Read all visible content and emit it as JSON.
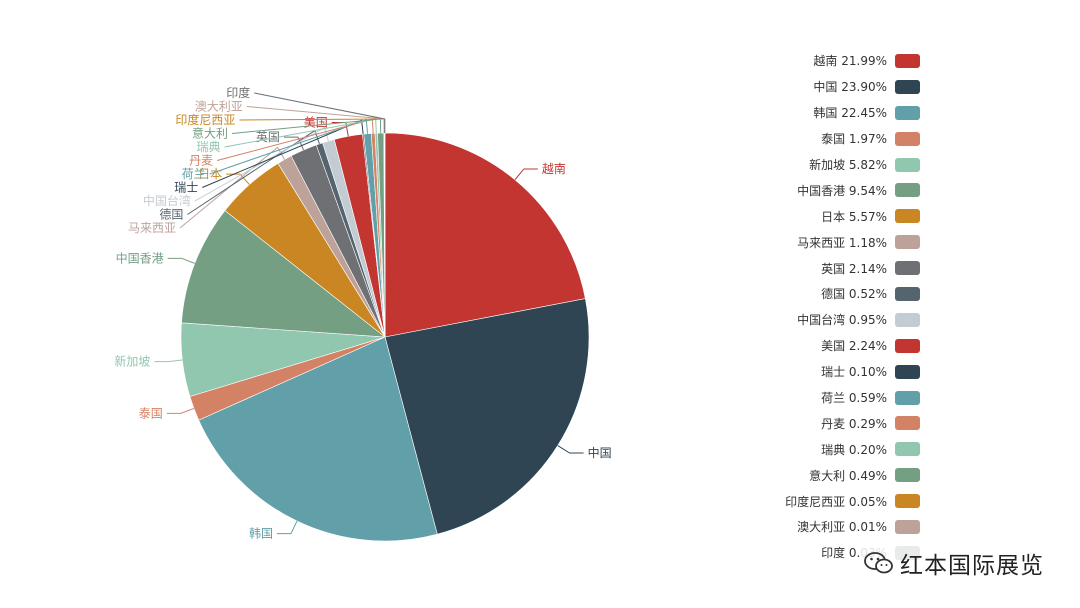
{
  "chart_data": {
    "type": "pie",
    "categories": [
      "越南",
      "中国",
      "韩国",
      "泰国",
      "新加坡",
      "中国香港",
      "日本",
      "马来西亚",
      "英国",
      "德国",
      "中国台湾",
      "美国",
      "瑞士",
      "荷兰",
      "丹麦",
      "瑞典",
      "意大利",
      "印度尼西亚",
      "澳大利亚",
      "印度"
    ],
    "values": [
      21.99,
      23.9,
      22.45,
      1.97,
      5.82,
      9.54,
      5.57,
      1.18,
      2.14,
      0.52,
      0.95,
      2.24,
      0.1,
      0.59,
      0.29,
      0.2,
      0.49,
      0.05,
      0.01,
      0.03
    ],
    "legend_labels": [
      "越南 21.99%",
      "中国 23.90%",
      "韩国 22.45%",
      "泰国 1.97%",
      "新加坡 5.82%",
      "中国香港 9.54%",
      "日本 5.57%",
      "马来西亚 1.18%",
      "英国 2.14%",
      "德国 0.52%",
      "中国台湾 0.95%",
      "美国 2.24%",
      "瑞士 0.10%",
      "荷兰 0.59%",
      "丹麦 0.29%",
      "瑞典 0.20%",
      "意大利 0.49%",
      "印度尼西亚 0.05%",
      "澳大利亚 0.01%",
      "印度 0.03%"
    ],
    "colors": [
      "#c23531",
      "#2f4554",
      "#61a0a8",
      "#d48265",
      "#91c7ae",
      "#749f83",
      "#ca8622",
      "#bda29a",
      "#6e7074",
      "#546570",
      "#c4ccd3",
      "#c23531",
      "#2f4554",
      "#61a0a8",
      "#d48265",
      "#91c7ae",
      "#749f83",
      "#ca8622",
      "#bda29a",
      "#6e7074"
    ],
    "unit": "%",
    "legend_position": "right"
  },
  "watermark": {
    "text": "红本国际展览",
    "icon": "wechat-icon"
  }
}
